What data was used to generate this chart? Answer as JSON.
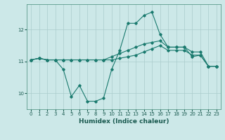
{
  "xlabel": "Humidex (Indice chaleur)",
  "ylabel": "",
  "bg_color": "#cce8e8",
  "grid_color": "#aacccc",
  "line_color": "#1a7a6e",
  "xlim": [
    -0.5,
    23.5
  ],
  "ylim": [
    9.5,
    12.8
  ],
  "yticks": [
    10,
    11,
    12
  ],
  "xticks": [
    0,
    1,
    2,
    3,
    4,
    5,
    6,
    7,
    8,
    9,
    10,
    11,
    12,
    13,
    14,
    15,
    16,
    17,
    18,
    19,
    20,
    21,
    22,
    23
  ],
  "series": [
    {
      "x": [
        0,
        1,
        2,
        3,
        4,
        5,
        6,
        7,
        8,
        9,
        10,
        11,
        12,
        13,
        14,
        15,
        16,
        17,
        18,
        19,
        20,
        21,
        22,
        23
      ],
      "y": [
        11.05,
        11.1,
        11.05,
        11.05,
        10.75,
        9.9,
        10.25,
        9.75,
        9.75,
        9.85,
        10.75,
        11.35,
        12.2,
        12.2,
        12.45,
        12.55,
        11.85,
        11.45,
        11.45,
        11.45,
        11.15,
        11.2,
        10.85,
        10.85
      ]
    },
    {
      "x": [
        0,
        1,
        2,
        3,
        4,
        5,
        6,
        7,
        8,
        9,
        10,
        11,
        12,
        13,
        14,
        15,
        16,
        17,
        18,
        19,
        20,
        21,
        22,
        23
      ],
      "y": [
        11.05,
        11.1,
        11.05,
        11.05,
        11.05,
        11.05,
        11.05,
        11.05,
        11.05,
        11.05,
        11.15,
        11.25,
        11.35,
        11.45,
        11.55,
        11.6,
        11.65,
        11.45,
        11.45,
        11.45,
        11.3,
        11.3,
        10.85,
        10.85
      ]
    },
    {
      "x": [
        0,
        1,
        2,
        3,
        4,
        5,
        6,
        7,
        8,
        9,
        10,
        11,
        12,
        13,
        14,
        15,
        16,
        17,
        18,
        19,
        20,
        21,
        22,
        23
      ],
      "y": [
        11.05,
        11.1,
        11.05,
        11.05,
        11.05,
        11.05,
        11.05,
        11.05,
        11.05,
        11.05,
        11.05,
        11.1,
        11.15,
        11.2,
        11.3,
        11.4,
        11.5,
        11.35,
        11.35,
        11.35,
        11.2,
        11.2,
        10.85,
        10.85
      ]
    }
  ]
}
